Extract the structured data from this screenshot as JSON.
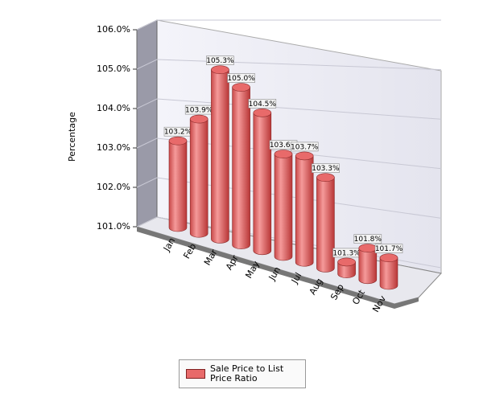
{
  "chart_data": {
    "type": "bar",
    "y_label": "Percentage",
    "categories": [
      "Jan",
      "Feb",
      "Mar",
      "Apr",
      "May",
      "Jun",
      "Jul",
      "Aug",
      "Sep",
      "Oct",
      "Nov"
    ],
    "series": [
      {
        "name": "Sale Price to List Price Ratio",
        "color": "#e86a6a",
        "values": [
          103.2,
          103.9,
          105.3,
          105.0,
          104.5,
          103.6,
          103.7,
          103.3,
          101.3,
          101.8,
          101.7
        ],
        "value_labels": [
          "103.2%",
          "103.9%",
          "105.3%",
          "105.0%",
          "104.5%",
          "103.6%",
          "103.7%",
          "103.3%",
          "101.3%",
          "101.8%",
          "101.7%"
        ]
      }
    ],
    "ylim": [
      101,
      106
    ],
    "yticks": [
      {
        "value": 101,
        "label": "101.0%"
      },
      {
        "value": 102,
        "label": "102.0%"
      },
      {
        "value": 103,
        "label": "103.0%"
      },
      {
        "value": 104,
        "label": "104.0%"
      },
      {
        "value": 105,
        "label": "105.0%"
      },
      {
        "value": 106,
        "label": "106.0%"
      }
    ],
    "grid": true
  }
}
